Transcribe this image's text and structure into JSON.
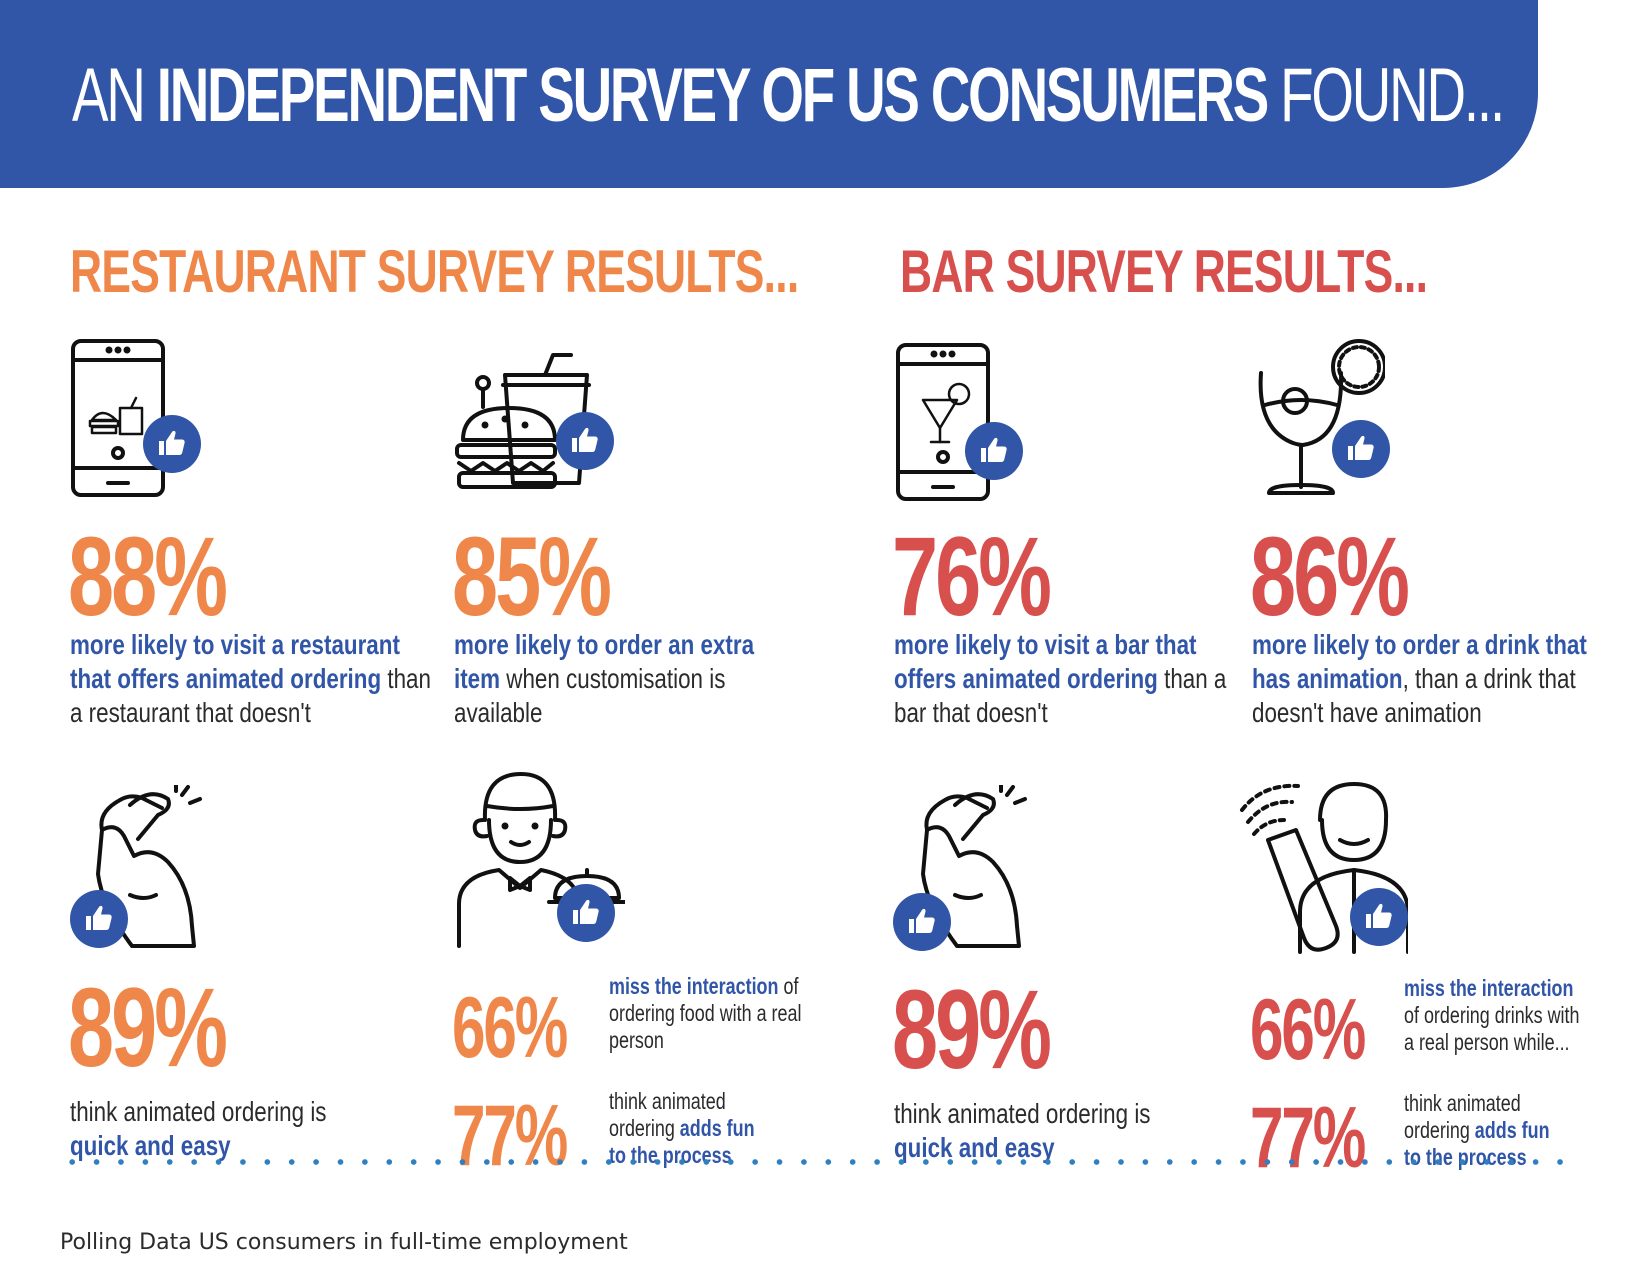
{
  "header": {
    "title_part1": "AN ",
    "title_part2": "INDEPENDENT SURVEY OF US CONSUMERS",
    "title_part3": " FOUND..."
  },
  "colors": {
    "blue": "#3156a7",
    "orange": "#f0874a",
    "red": "#d7504d",
    "dots": "#2f7fc1"
  },
  "restaurant": {
    "title": "RESTAURANT SURVEY RESULTS...",
    "stat1": {
      "icon": "phone-food-icon",
      "value": "88%",
      "strong": "more likely to visit a restaurant that offers animated ordering",
      "rest": " than a restaurant that doesn't"
    },
    "stat2": {
      "icon": "burger-drink-icon",
      "value": "85%",
      "strong": "more likely to order an extra item",
      "rest": " when customisation is available"
    },
    "stat3": {
      "icon": "snap-fingers-icon",
      "value": "89%",
      "pre": "think animated ordering is ",
      "strong": "quick and easy"
    },
    "stat4": {
      "icon": "waiter-icon",
      "value": "66%",
      "strong": "miss the interaction",
      "rest": " of ordering food with a real person"
    },
    "stat5": {
      "value": "77%",
      "pre": "think animated ordering ",
      "strong": "adds fun to the process"
    }
  },
  "bar": {
    "title": "BAR SURVEY RESULTS...",
    "stat1": {
      "icon": "phone-cocktail-icon",
      "value": "76%",
      "strong": "more likely to visit a bar that offers animated ordering",
      "rest": " than a bar that doesn't"
    },
    "stat2": {
      "icon": "cocktail-glass-icon",
      "value": "86%",
      "strong": "more likely to order a drink that has animation",
      "rest": ", than a drink that doesn't have animation"
    },
    "stat3": {
      "icon": "snap-fingers-icon",
      "value": "89%",
      "pre": "think animated ordering is ",
      "strong": "quick and easy"
    },
    "stat4": {
      "icon": "bartender-icon",
      "value": "66%",
      "strong": "miss the interaction",
      "rest": " of ordering drinks with a real person while..."
    },
    "stat5": {
      "value": "77%",
      "pre": "think animated ordering ",
      "strong": "adds fun to the process"
    }
  },
  "footer": {
    "text": "Polling Data US consumers in full-time employment"
  }
}
